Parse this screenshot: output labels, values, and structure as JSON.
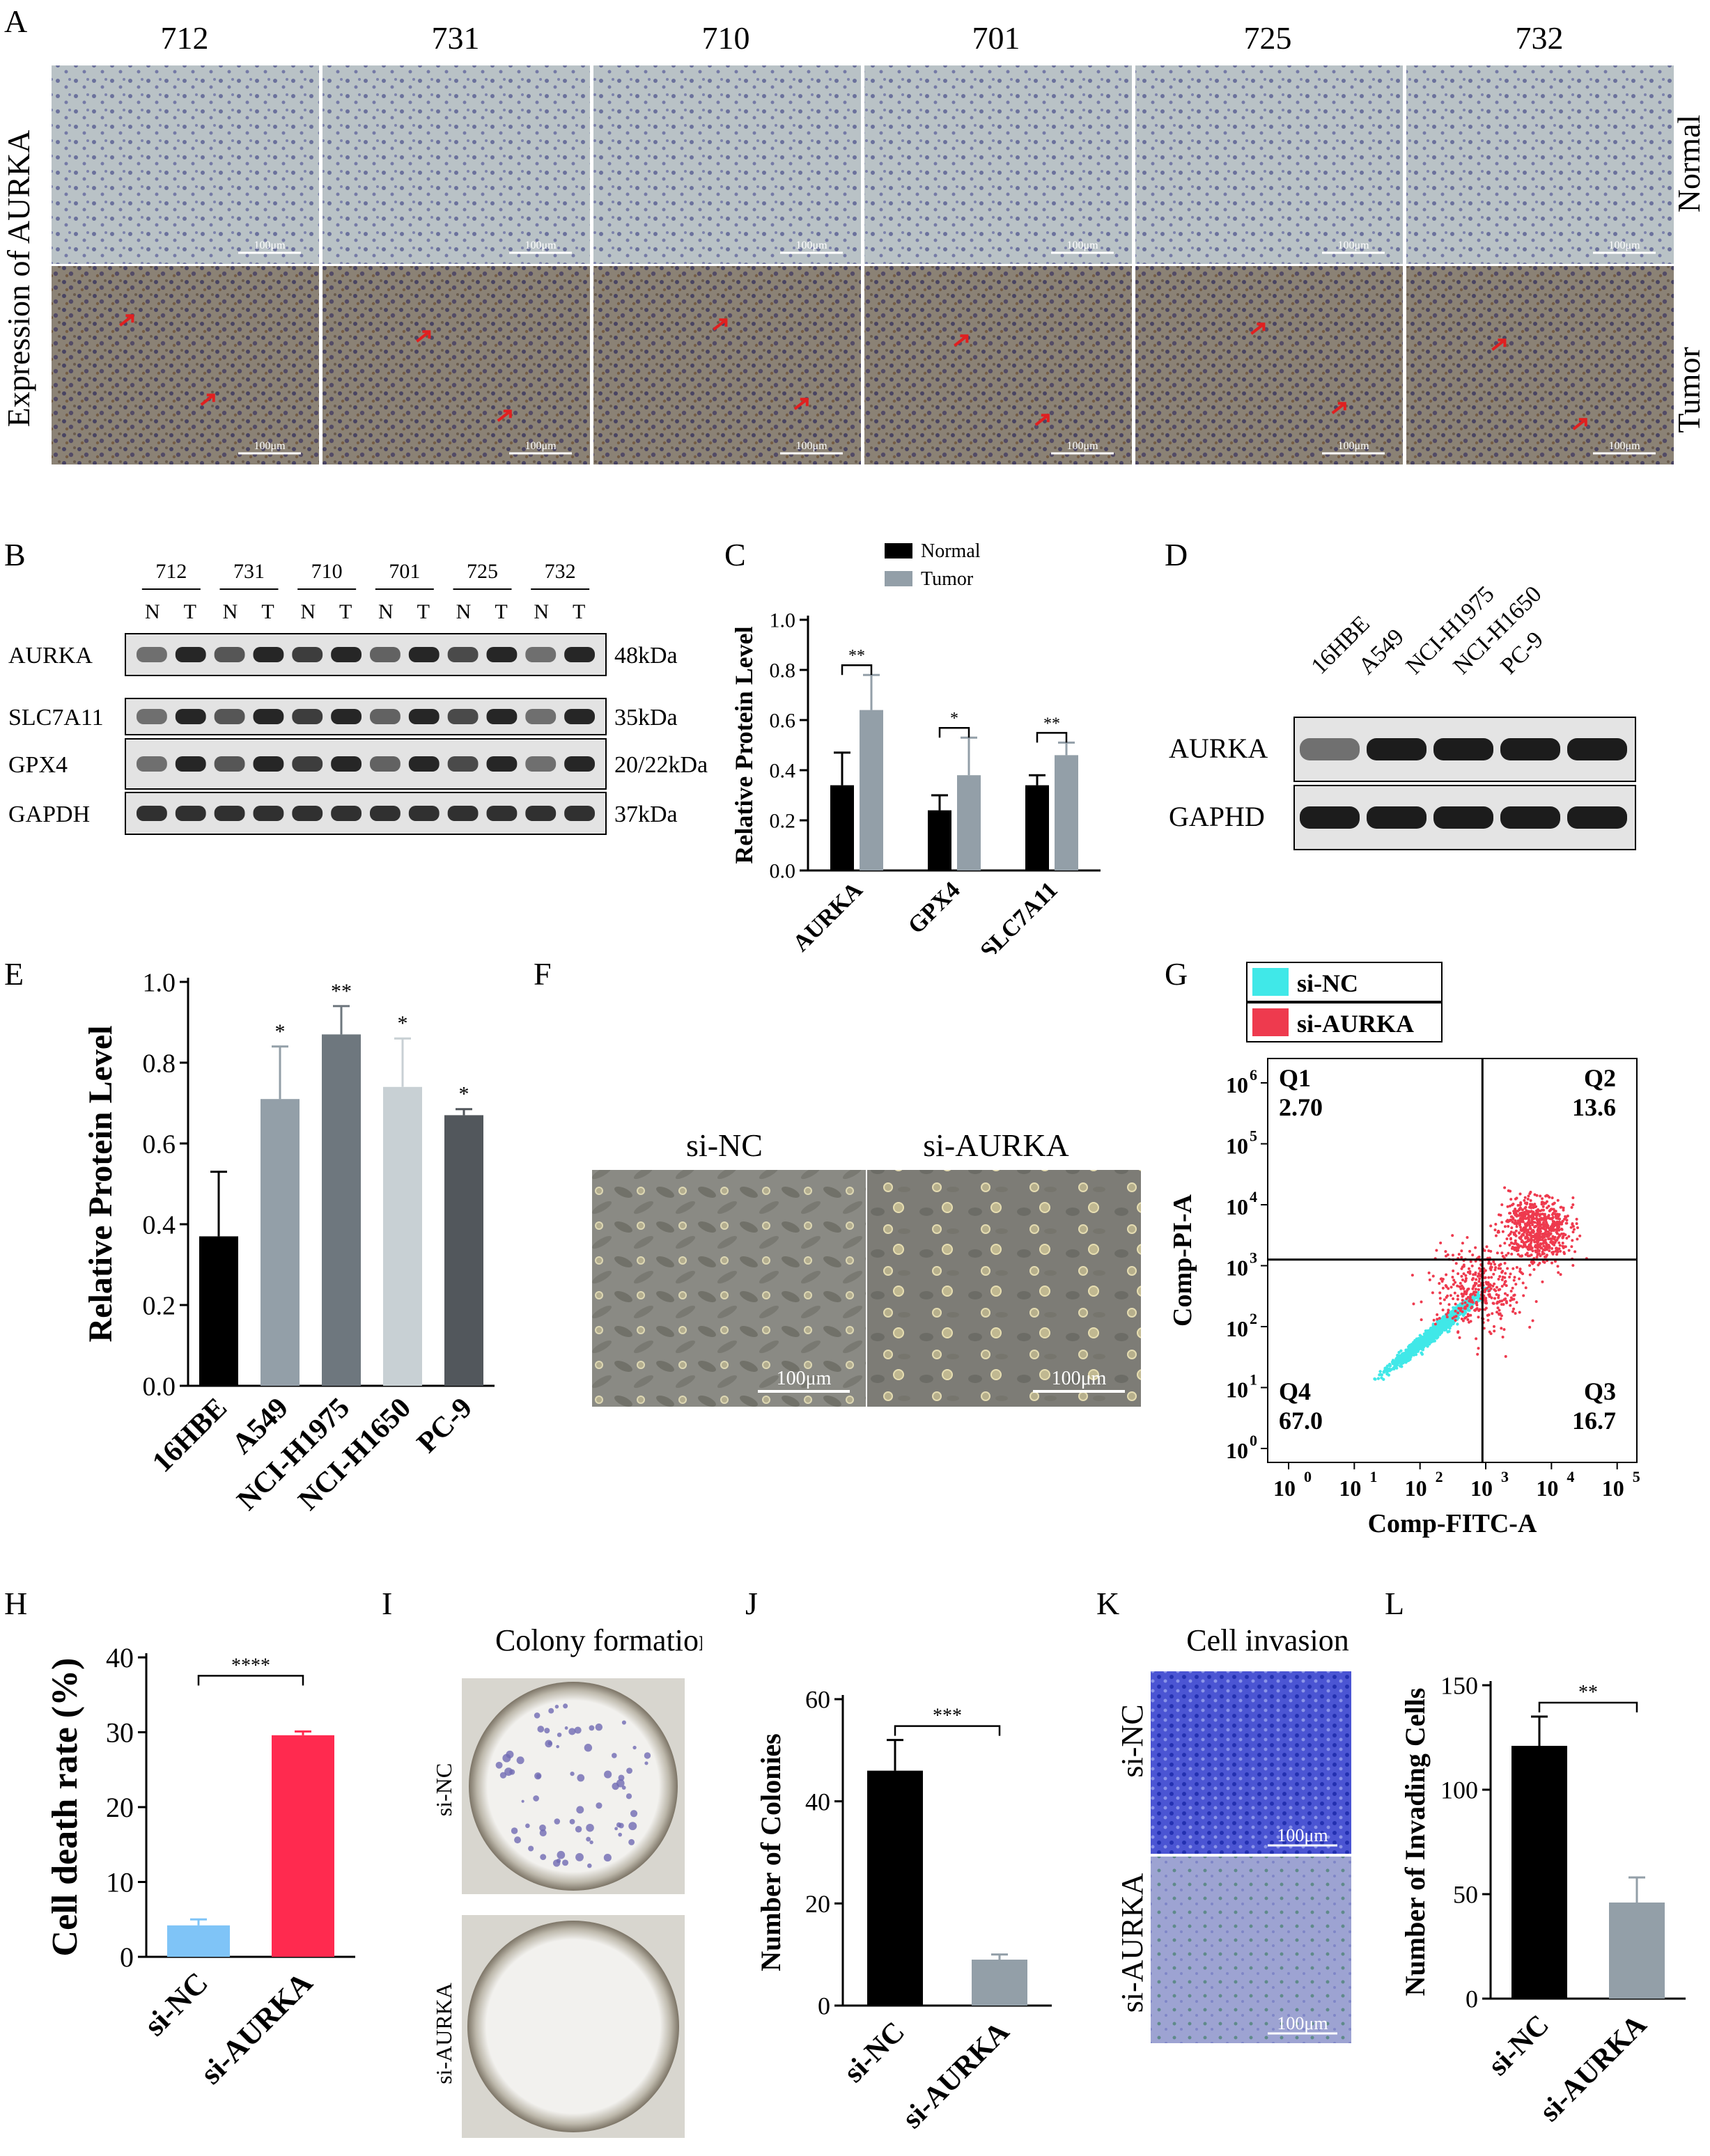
{
  "colors": {
    "normal_bar": "#000000",
    "tumor_bar": "#939fa8",
    "e_bars": [
      "#000000",
      "#939fa8",
      "#6e777e",
      "#c8d0d4",
      "#52575c"
    ],
    "si_nc_flow": "#40e8e8",
    "si_aurka_flow": "#ee3a4e",
    "h_si_nc": "#7fc4f7",
    "h_si_aurka": "#ff2a4f",
    "arrow": "#e02020",
    "ihc_normal_bg": "#b9c2c6",
    "ihc_tumor_bg": "#8b8275"
  },
  "panel_letters": [
    "A",
    "B",
    "C",
    "D",
    "E",
    "F",
    "G",
    "H",
    "I",
    "J",
    "K",
    "L"
  ],
  "panel_a": {
    "samples": [
      "712",
      "731",
      "710",
      "701",
      "725",
      "732"
    ],
    "row_labels": [
      "Normal",
      "Tumor"
    ],
    "y_label": "Expression of AURKA",
    "scale_bar": "100μm"
  },
  "panel_b": {
    "samples": [
      "712",
      "731",
      "710",
      "701",
      "725",
      "732"
    ],
    "lane_labels": [
      "N",
      "T"
    ],
    "proteins": [
      "AURKA",
      "SLC7A11",
      "GPX4",
      "GAPDH"
    ],
    "sizes": [
      "48kDa",
      "35kDa",
      "20/22kDa",
      "37kDa"
    ]
  },
  "panel_d": {
    "cell_lines": [
      "16HBE",
      "A549",
      "NCI-H1975",
      "NCI-H1650",
      "PC-9"
    ],
    "proteins": [
      "AURKA",
      "GAPHD"
    ]
  },
  "panel_f": {
    "labels": [
      "si-NC",
      "si-AURKA"
    ],
    "scale_bar": "100μm"
  },
  "panel_i": {
    "title": "Colony formation",
    "labels": [
      "si-NC",
      "si-AURKA"
    ]
  },
  "panel_k": {
    "title": "Cell invasion",
    "labels": [
      "si-NC",
      "si-AURKA"
    ],
    "scale_bar": "100μm"
  },
  "chart_data": [
    {
      "id": "C",
      "type": "bar",
      "categories": [
        "AURKA",
        "GPX4",
        "SLC7A11"
      ],
      "series": [
        {
          "name": "Normal",
          "values": [
            0.34,
            0.24,
            0.34
          ],
          "errors": [
            0.13,
            0.06,
            0.04
          ]
        },
        {
          "name": "Tumor",
          "values": [
            0.64,
            0.38,
            0.46
          ],
          "errors": [
            0.14,
            0.15,
            0.05
          ]
        }
      ],
      "significance": [
        "**",
        "*",
        "**"
      ],
      "ylabel": "Relative Protein Level",
      "ylim": [
        0,
        1.0
      ],
      "yticks": [
        "0.0",
        "0.2",
        "0.4",
        "0.6",
        "0.8",
        "1.0"
      ],
      "legend": "top"
    },
    {
      "id": "E",
      "type": "bar",
      "categories": [
        "16HBE",
        "A549",
        "NCI-H1975",
        "NCI-H1650",
        "PC-9"
      ],
      "values": [
        0.37,
        0.71,
        0.87,
        0.74,
        0.67
      ],
      "errors": [
        0.16,
        0.13,
        0.07,
        0.12,
        0.015
      ],
      "significance": [
        "",
        "*",
        "**",
        "*",
        "*"
      ],
      "ylabel": "Relative Protein Level",
      "ylim": [
        0,
        1.0
      ],
      "yticks": [
        "0.0",
        "0.2",
        "0.4",
        "0.6",
        "0.8",
        "1.0"
      ]
    },
    {
      "id": "G",
      "type": "scatter",
      "xlabel": "Comp-FITC-A",
      "ylabel": "Comp-PI-A",
      "xticks": [
        "0",
        "1",
        "2",
        "3",
        "4",
        "5"
      ],
      "yticks": [
        "0",
        "1",
        "2",
        "3",
        "4",
        "5",
        "6"
      ],
      "log_scale": true,
      "legend": [
        "si-NC",
        "si-AURKA"
      ],
      "quadrants": [
        {
          "name": "Q1",
          "value": "2.70"
        },
        {
          "name": "Q2",
          "value": "13.6"
        },
        {
          "name": "Q3",
          "value": "16.7"
        },
        {
          "name": "Q4",
          "value": "67.0"
        }
      ]
    },
    {
      "id": "H",
      "type": "bar",
      "categories": [
        "si-NC",
        "si-AURKA"
      ],
      "values": [
        4.2,
        29.6
      ],
      "errors": [
        0.8,
        0.5
      ],
      "significance": "****",
      "ylabel": "Cell death rate (%)",
      "ylim": [
        0,
        40
      ],
      "yticks": [
        "0",
        "10",
        "20",
        "30",
        "40"
      ]
    },
    {
      "id": "J",
      "type": "bar",
      "categories": [
        "si-NC",
        "si-AURKA"
      ],
      "values": [
        46,
        9
      ],
      "errors": [
        6,
        1
      ],
      "significance": "***",
      "ylabel": "Number of Colonies",
      "ylim": [
        0,
        60
      ],
      "yticks": [
        "0",
        "20",
        "40",
        "60"
      ]
    },
    {
      "id": "L",
      "type": "bar",
      "categories": [
        "si-NC",
        "si-AURKA"
      ],
      "values": [
        121,
        46
      ],
      "errors": [
        14,
        12
      ],
      "significance": "**",
      "ylabel": "Number of Invading Cells",
      "ylim": [
        0,
        150
      ],
      "yticks": [
        "0",
        "50",
        "100",
        "150"
      ]
    }
  ]
}
